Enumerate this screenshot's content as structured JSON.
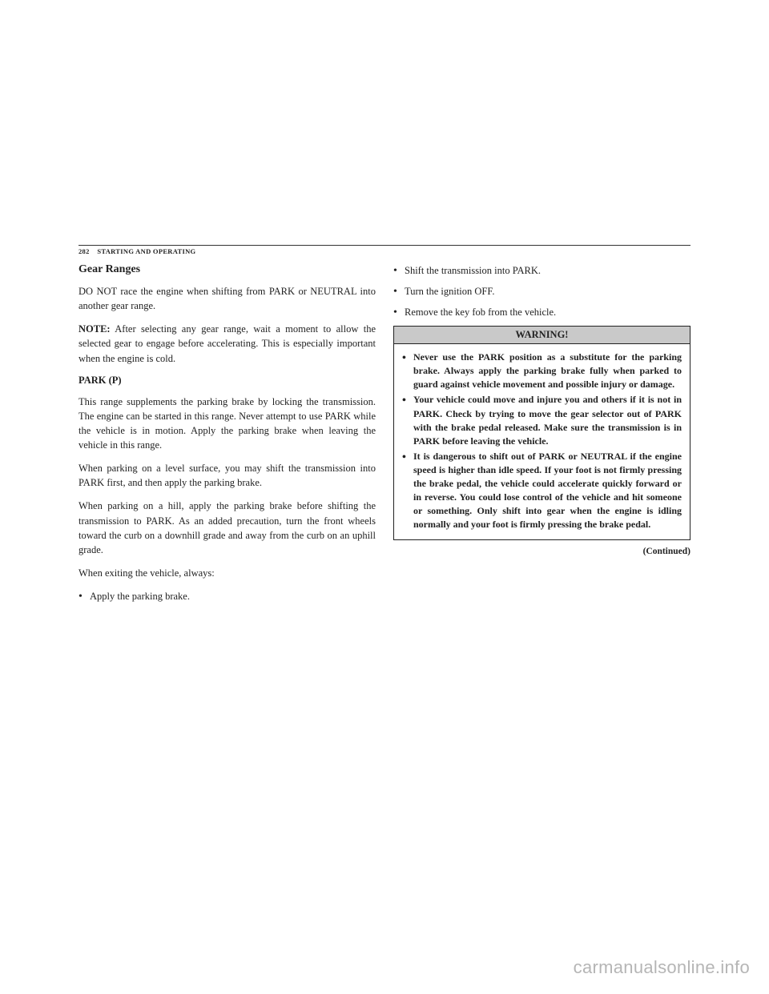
{
  "header": {
    "page_number": "282",
    "section": "STARTING AND OPERATING"
  },
  "left_column": {
    "heading": "Gear Ranges",
    "intro": "DO NOT race the engine when shifting from PARK or NEUTRAL into another gear range.",
    "note_label": "NOTE:",
    "note_text": " After selecting any gear range, wait a moment to allow the selected gear to engage before accelerating. This is especially important when the engine is cold.",
    "subhead": "PARK (P)",
    "p1": "This range supplements the parking brake by locking the transmission. The engine can be started in this range. Never attempt to use PARK while the vehicle is in motion. Apply the parking brake when leaving the vehicle in this range.",
    "p2": "When parking on a level surface, you may shift the transmission into PARK first, and then apply the parking brake.",
    "p3": "When parking on a hill, apply the parking brake before shifting the transmission to PARK. As an added precaution, turn the front wheels toward the curb on a downhill grade and away from the curb on an uphill grade.",
    "p4": "When exiting the vehicle, always:",
    "bullet1": "Apply the parking brake."
  },
  "right_column": {
    "bullets": [
      "Shift the transmission into PARK.",
      "Turn the ignition OFF.",
      "Remove the key fob from the vehicle."
    ],
    "warning_title": "WARNING!",
    "warning_items": [
      "Never use the PARK position as a substitute for the parking brake. Always apply the parking brake fully when parked to guard against vehicle movement and possible injury or damage.",
      "Your vehicle could move and injure you and others if it is not in PARK. Check by trying to move the gear selector out of PARK with the brake pedal released. Make sure the transmission is in PARK before leaving the vehicle.",
      "It is dangerous to shift out of PARK or NEUTRAL if the engine speed is higher than idle speed. If your foot is not firmly pressing the brake pedal, the vehicle could accelerate quickly forward or in reverse. You could lose control of the vehicle and hit someone or something. Only shift into gear when the engine is idling normally and your foot is firmly pressing the brake pedal."
    ],
    "continued": "(Continued)"
  },
  "watermark": "carmanualsonline.info"
}
